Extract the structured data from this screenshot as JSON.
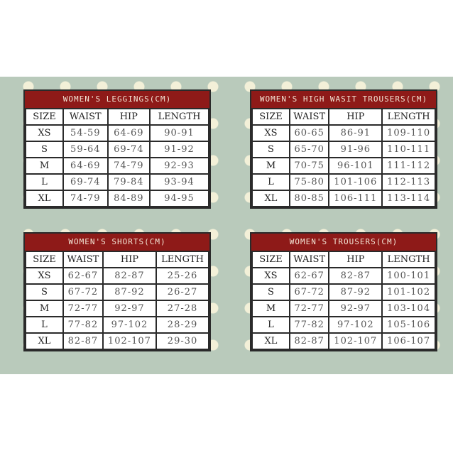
{
  "charts": [
    {
      "title": "WOMEN'S LEGGINGS(CM)",
      "headers": [
        "SIZE",
        "WAIST",
        "HIP",
        "LENGTH"
      ],
      "rows": [
        [
          "XS",
          "54-59",
          "64-69",
          "90-91"
        ],
        [
          "S",
          "59-64",
          "69-74",
          "91-92"
        ],
        [
          "M",
          "64-69",
          "74-79",
          "92-93"
        ],
        [
          "L",
          "69-74",
          "79-84",
          "93-94"
        ],
        [
          "XL",
          "74-79",
          "84-89",
          "94-95"
        ]
      ]
    },
    {
      "title": "WOMEN'S HIGH WASIT TROUSERS(CM)",
      "headers": [
        "SIZE",
        "WAIST",
        "HIP",
        "LENGTH"
      ],
      "rows": [
        [
          "XS",
          "60-65",
          "86-91",
          "109-110"
        ],
        [
          "S",
          "65-70",
          "91-96",
          "110-111"
        ],
        [
          "M",
          "70-75",
          "96-101",
          "111-112"
        ],
        [
          "L",
          "75-80",
          "101-106",
          "112-113"
        ],
        [
          "XL",
          "80-85",
          "106-111",
          "113-114"
        ]
      ]
    },
    {
      "title": "WOMEN'S SHORTS(CM)",
      "headers": [
        "SIZE",
        "WAIST",
        "HIP",
        "LENGTH"
      ],
      "rows": [
        [
          "XS",
          "62-67",
          "82-87",
          "25-26"
        ],
        [
          "S",
          "67-72",
          "87-92",
          "26-27"
        ],
        [
          "M",
          "72-77",
          "92-97",
          "27-28"
        ],
        [
          "L",
          "77-82",
          "97-102",
          "28-29"
        ],
        [
          "XL",
          "82-87",
          "102-107",
          "29-30"
        ]
      ]
    },
    {
      "title": "WOMEN'S TROUSERS(CM)",
      "headers": [
        "SIZE",
        "WAIST",
        "HIP",
        "LENGTH"
      ],
      "rows": [
        [
          "XS",
          "62-67",
          "82-87",
          "100-101"
        ],
        [
          "S",
          "67-72",
          "87-92",
          "101-102"
        ],
        [
          "M",
          "72-77",
          "92-97",
          "103-104"
        ],
        [
          "L",
          "77-82",
          "97-102",
          "105-106"
        ],
        [
          "XL",
          "82-87",
          "102-107",
          "106-107"
        ]
      ]
    }
  ],
  "colors": {
    "header": "#8e1a18",
    "background": "#b9cabb",
    "dots": "#f3f0d8"
  }
}
